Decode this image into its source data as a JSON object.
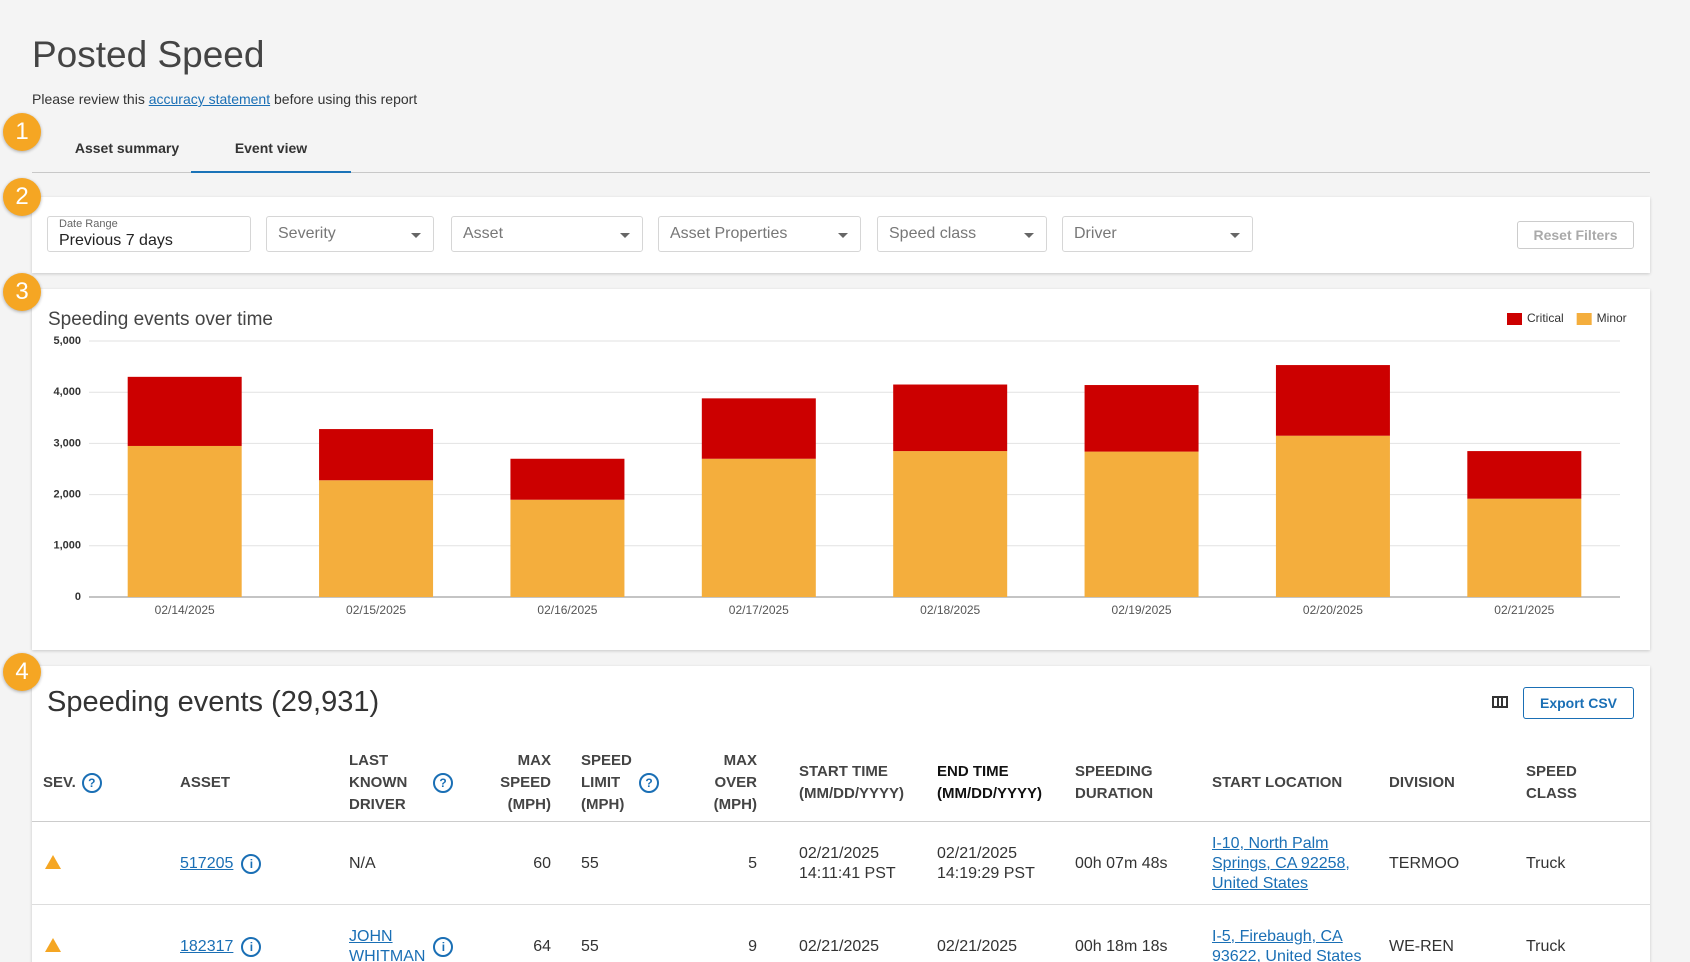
{
  "header": {
    "title": "Posted Speed",
    "note_before": "Please review this",
    "note_link": "accuracy statement",
    "note_after": "before using this report"
  },
  "callouts": [
    "1",
    "2",
    "3",
    "4"
  ],
  "tabs": [
    "Asset summary",
    "Event view"
  ],
  "active_tab": 1,
  "filters": {
    "date_range_label": "Date Range",
    "date_range_value": "Previous 7 days",
    "dropdowns": [
      "Severity",
      "Asset",
      "Asset Properties",
      "Speed class",
      "Driver"
    ],
    "reset": "Reset Filters"
  },
  "chart_data": {
    "type": "bar",
    "stacked": true,
    "title": "Speeding events over time",
    "categories": [
      "02/14/2025",
      "02/15/2025",
      "02/16/2025",
      "02/17/2025",
      "02/18/2025",
      "02/19/2025",
      "02/20/2025",
      "02/21/2025"
    ],
    "series": [
      {
        "name": "Critical",
        "color": "#cc0000",
        "values": [
          1350,
          1000,
          800,
          1180,
          1300,
          1300,
          1380,
          930
        ]
      },
      {
        "name": "Minor",
        "color": "#f4ae3d",
        "values": [
          2950,
          2280,
          1900,
          2700,
          2850,
          2840,
          3150,
          1920
        ]
      }
    ],
    "ylim": [
      0,
      5000
    ],
    "yticks": [
      0,
      {
        "value": 1000,
        "label": "1,000"
      },
      {
        "value": 2000,
        "label": "2,000"
      },
      {
        "value": 3000,
        "label": "3,000"
      },
      {
        "value": 4000,
        "label": "4,000"
      },
      {
        "value": 5000,
        "label": "5,000"
      }
    ],
    "grid": true,
    "legend": "top-right"
  },
  "table": {
    "title": "Speeding events (29,931)",
    "export": "Export CSV",
    "headers": [
      "SEV.",
      "ASSET",
      "LAST KNOWN DRIVER",
      "MAX SPEED (MPH)",
      "SPEED LIMIT (MPH)",
      "MAX OVER (MPH)",
      "START TIME (MM/DD/YYYY)",
      "END TIME (MM/DD/YYYY)",
      "SPEEDING DURATION",
      "START LOCATION",
      "DIVISION",
      "SPEED CLASS"
    ],
    "rows": [
      [
        "517205",
        "N/A",
        60,
        55,
        5,
        "02/21/2025 14:11:41 PST",
        "02/21/2025 14:19:29 PST",
        "00h 07m 48s",
        "I-10, North Palm Springs, CA 92258, United States",
        "TERMOO",
        "Truck"
      ],
      [
        "182317",
        "JOHN WHITMAN",
        64,
        55,
        9,
        "02/21/2025",
        "02/21/2025",
        "00h 18m 18s",
        "I-5, Firebaugh, CA 93622, United States",
        "WE-REN",
        "Truck"
      ]
    ]
  }
}
